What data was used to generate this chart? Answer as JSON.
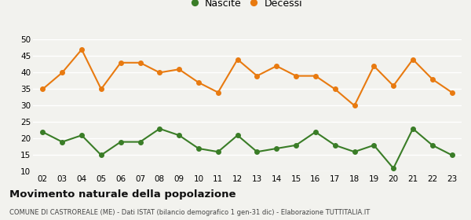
{
  "years": [
    "02",
    "03",
    "04",
    "05",
    "06",
    "07",
    "08",
    "09",
    "10",
    "11",
    "12",
    "13",
    "14",
    "15",
    "16",
    "17",
    "18",
    "19",
    "20",
    "21",
    "22",
    "23"
  ],
  "nascite": [
    22,
    19,
    21,
    15,
    19,
    19,
    23,
    21,
    17,
    16,
    21,
    16,
    17,
    18,
    22,
    18,
    16,
    18,
    11,
    23,
    18,
    15
  ],
  "decessi": [
    35,
    40,
    47,
    35,
    43,
    43,
    40,
    41,
    37,
    34,
    44,
    39,
    42,
    39,
    39,
    35,
    30,
    42,
    36,
    44,
    38,
    34
  ],
  "nascite_color": "#3a7d27",
  "decessi_color": "#e87a10",
  "background_color": "#f2f2ee",
  "ylim": [
    10,
    50
  ],
  "yticks": [
    10,
    15,
    20,
    25,
    30,
    35,
    40,
    45,
    50
  ],
  "title": "Movimento naturale della popolazione",
  "subtitle": "COMUNE DI CASTROREALE (ME) - Dati ISTAT (bilancio demografico 1 gen-31 dic) - Elaborazione TUTTITALIA.IT",
  "legend_nascite": "Nascite",
  "legend_decessi": "Decessi",
  "marker_size": 4,
  "line_width": 1.5
}
